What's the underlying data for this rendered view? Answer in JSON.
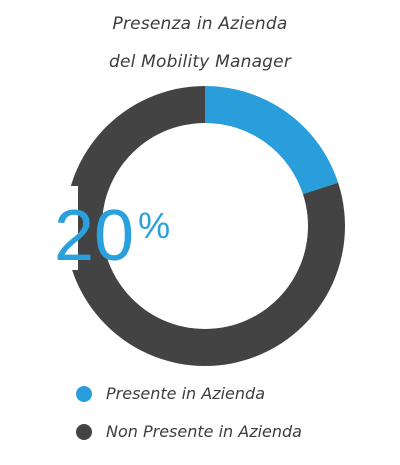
{
  "chart_data": {
    "type": "pie",
    "title_line_1": "Presenza in Azienda",
    "title_line_2": "del Mobility Manager",
    "center_value": "20",
    "center_unit": "%",
    "series": [
      {
        "name": "Presente in Azienda",
        "value": 20,
        "color": "#2a9ddb"
      },
      {
        "name": "Non Presente in Azienda",
        "value": 80,
        "color": "#434343"
      }
    ]
  }
}
